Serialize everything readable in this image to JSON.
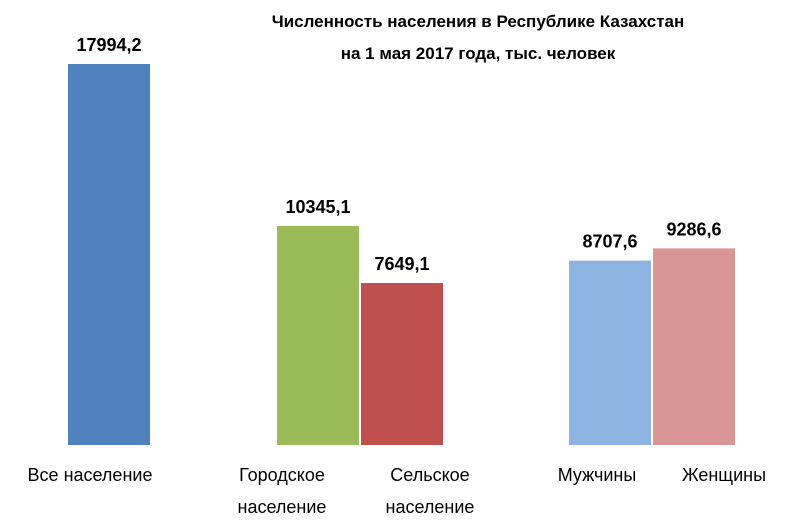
{
  "chart_data": {
    "type": "bar",
    "title_lines": [
      "Численность населения  в Республике  Казахстан",
      "на 1 мая 2017 года, тыс. человек"
    ],
    "xlabel": "",
    "ylabel": "",
    "ylim": [
      0,
      17994.2
    ],
    "grid": false,
    "legend": "none",
    "categories": [
      [
        "Все население"
      ],
      [
        "Городское",
        "население"
      ],
      [
        "Сельское",
        "население"
      ],
      [
        "Мужчины"
      ],
      [
        "Женщины"
      ]
    ],
    "values": [
      17994.2,
      10345.1,
      7649.1,
      8707.6,
      9286.6
    ],
    "data_labels": [
      "17994,2",
      "10345,1",
      "7649,1",
      "8707,6",
      "9286,6"
    ],
    "colors": [
      "#4f81bd",
      "#9bbb59",
      "#c0504d",
      "#8db3e2",
      "#d99694"
    ]
  }
}
